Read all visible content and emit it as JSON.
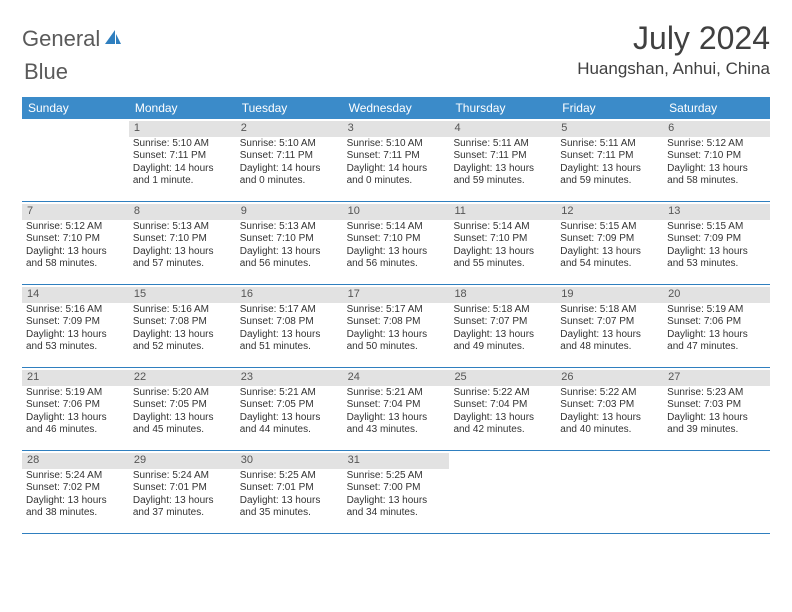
{
  "brand": {
    "part1": "General",
    "part2": "Blue",
    "logo_color": "#2f7fbf",
    "text_color": "#5a5a5a"
  },
  "title": "July 2024",
  "location": "Huangshan, Anhui, China",
  "colors": {
    "header_bg": "#3b8bc9",
    "header_text": "#ffffff",
    "daynum_bg": "#e2e2e2",
    "border": "#2f7fbf",
    "page_bg": "#ffffff"
  },
  "day_names": [
    "Sunday",
    "Monday",
    "Tuesday",
    "Wednesday",
    "Thursday",
    "Friday",
    "Saturday"
  ],
  "weeks": [
    [
      {
        "empty": true
      },
      {
        "num": "1",
        "sunrise": "Sunrise: 5:10 AM",
        "sunset": "Sunset: 7:11 PM",
        "daylight1": "Daylight: 14 hours",
        "daylight2": "and 1 minute."
      },
      {
        "num": "2",
        "sunrise": "Sunrise: 5:10 AM",
        "sunset": "Sunset: 7:11 PM",
        "daylight1": "Daylight: 14 hours",
        "daylight2": "and 0 minutes."
      },
      {
        "num": "3",
        "sunrise": "Sunrise: 5:10 AM",
        "sunset": "Sunset: 7:11 PM",
        "daylight1": "Daylight: 14 hours",
        "daylight2": "and 0 minutes."
      },
      {
        "num": "4",
        "sunrise": "Sunrise: 5:11 AM",
        "sunset": "Sunset: 7:11 PM",
        "daylight1": "Daylight: 13 hours",
        "daylight2": "and 59 minutes."
      },
      {
        "num": "5",
        "sunrise": "Sunrise: 5:11 AM",
        "sunset": "Sunset: 7:11 PM",
        "daylight1": "Daylight: 13 hours",
        "daylight2": "and 59 minutes."
      },
      {
        "num": "6",
        "sunrise": "Sunrise: 5:12 AM",
        "sunset": "Sunset: 7:10 PM",
        "daylight1": "Daylight: 13 hours",
        "daylight2": "and 58 minutes."
      }
    ],
    [
      {
        "num": "7",
        "sunrise": "Sunrise: 5:12 AM",
        "sunset": "Sunset: 7:10 PM",
        "daylight1": "Daylight: 13 hours",
        "daylight2": "and 58 minutes."
      },
      {
        "num": "8",
        "sunrise": "Sunrise: 5:13 AM",
        "sunset": "Sunset: 7:10 PM",
        "daylight1": "Daylight: 13 hours",
        "daylight2": "and 57 minutes."
      },
      {
        "num": "9",
        "sunrise": "Sunrise: 5:13 AM",
        "sunset": "Sunset: 7:10 PM",
        "daylight1": "Daylight: 13 hours",
        "daylight2": "and 56 minutes."
      },
      {
        "num": "10",
        "sunrise": "Sunrise: 5:14 AM",
        "sunset": "Sunset: 7:10 PM",
        "daylight1": "Daylight: 13 hours",
        "daylight2": "and 56 minutes."
      },
      {
        "num": "11",
        "sunrise": "Sunrise: 5:14 AM",
        "sunset": "Sunset: 7:10 PM",
        "daylight1": "Daylight: 13 hours",
        "daylight2": "and 55 minutes."
      },
      {
        "num": "12",
        "sunrise": "Sunrise: 5:15 AM",
        "sunset": "Sunset: 7:09 PM",
        "daylight1": "Daylight: 13 hours",
        "daylight2": "and 54 minutes."
      },
      {
        "num": "13",
        "sunrise": "Sunrise: 5:15 AM",
        "sunset": "Sunset: 7:09 PM",
        "daylight1": "Daylight: 13 hours",
        "daylight2": "and 53 minutes."
      }
    ],
    [
      {
        "num": "14",
        "sunrise": "Sunrise: 5:16 AM",
        "sunset": "Sunset: 7:09 PM",
        "daylight1": "Daylight: 13 hours",
        "daylight2": "and 53 minutes."
      },
      {
        "num": "15",
        "sunrise": "Sunrise: 5:16 AM",
        "sunset": "Sunset: 7:08 PM",
        "daylight1": "Daylight: 13 hours",
        "daylight2": "and 52 minutes."
      },
      {
        "num": "16",
        "sunrise": "Sunrise: 5:17 AM",
        "sunset": "Sunset: 7:08 PM",
        "daylight1": "Daylight: 13 hours",
        "daylight2": "and 51 minutes."
      },
      {
        "num": "17",
        "sunrise": "Sunrise: 5:17 AM",
        "sunset": "Sunset: 7:08 PM",
        "daylight1": "Daylight: 13 hours",
        "daylight2": "and 50 minutes."
      },
      {
        "num": "18",
        "sunrise": "Sunrise: 5:18 AM",
        "sunset": "Sunset: 7:07 PM",
        "daylight1": "Daylight: 13 hours",
        "daylight2": "and 49 minutes."
      },
      {
        "num": "19",
        "sunrise": "Sunrise: 5:18 AM",
        "sunset": "Sunset: 7:07 PM",
        "daylight1": "Daylight: 13 hours",
        "daylight2": "and 48 minutes."
      },
      {
        "num": "20",
        "sunrise": "Sunrise: 5:19 AM",
        "sunset": "Sunset: 7:06 PM",
        "daylight1": "Daylight: 13 hours",
        "daylight2": "and 47 minutes."
      }
    ],
    [
      {
        "num": "21",
        "sunrise": "Sunrise: 5:19 AM",
        "sunset": "Sunset: 7:06 PM",
        "daylight1": "Daylight: 13 hours",
        "daylight2": "and 46 minutes."
      },
      {
        "num": "22",
        "sunrise": "Sunrise: 5:20 AM",
        "sunset": "Sunset: 7:05 PM",
        "daylight1": "Daylight: 13 hours",
        "daylight2": "and 45 minutes."
      },
      {
        "num": "23",
        "sunrise": "Sunrise: 5:21 AM",
        "sunset": "Sunset: 7:05 PM",
        "daylight1": "Daylight: 13 hours",
        "daylight2": "and 44 minutes."
      },
      {
        "num": "24",
        "sunrise": "Sunrise: 5:21 AM",
        "sunset": "Sunset: 7:04 PM",
        "daylight1": "Daylight: 13 hours",
        "daylight2": "and 43 minutes."
      },
      {
        "num": "25",
        "sunrise": "Sunrise: 5:22 AM",
        "sunset": "Sunset: 7:04 PM",
        "daylight1": "Daylight: 13 hours",
        "daylight2": "and 42 minutes."
      },
      {
        "num": "26",
        "sunrise": "Sunrise: 5:22 AM",
        "sunset": "Sunset: 7:03 PM",
        "daylight1": "Daylight: 13 hours",
        "daylight2": "and 40 minutes."
      },
      {
        "num": "27",
        "sunrise": "Sunrise: 5:23 AM",
        "sunset": "Sunset: 7:03 PM",
        "daylight1": "Daylight: 13 hours",
        "daylight2": "and 39 minutes."
      }
    ],
    [
      {
        "num": "28",
        "sunrise": "Sunrise: 5:24 AM",
        "sunset": "Sunset: 7:02 PM",
        "daylight1": "Daylight: 13 hours",
        "daylight2": "and 38 minutes."
      },
      {
        "num": "29",
        "sunrise": "Sunrise: 5:24 AM",
        "sunset": "Sunset: 7:01 PM",
        "daylight1": "Daylight: 13 hours",
        "daylight2": "and 37 minutes."
      },
      {
        "num": "30",
        "sunrise": "Sunrise: 5:25 AM",
        "sunset": "Sunset: 7:01 PM",
        "daylight1": "Daylight: 13 hours",
        "daylight2": "and 35 minutes."
      },
      {
        "num": "31",
        "sunrise": "Sunrise: 5:25 AM",
        "sunset": "Sunset: 7:00 PM",
        "daylight1": "Daylight: 13 hours",
        "daylight2": "and 34 minutes."
      },
      {
        "empty": true
      },
      {
        "empty": true
      },
      {
        "empty": true
      }
    ]
  ]
}
